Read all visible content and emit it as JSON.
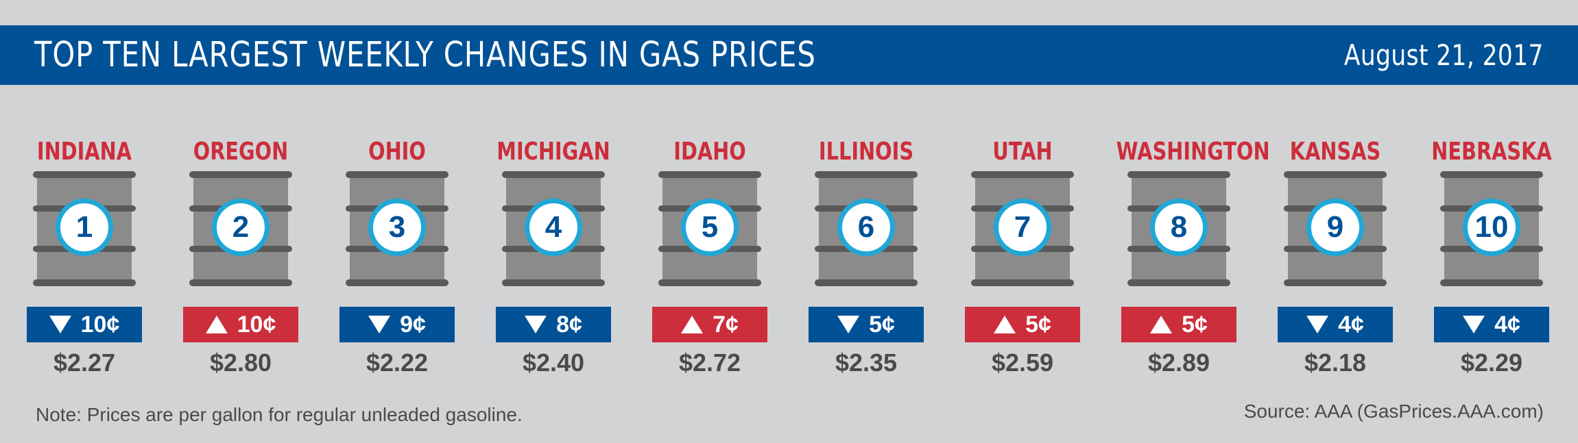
{
  "header": {
    "title": "TOP TEN LARGEST WEEKLY CHANGES IN GAS PRICES",
    "date": "August 21, 2017"
  },
  "colors": {
    "header_blue": "#005196",
    "state_red": "#cc2e3b",
    "decrease_blue": "#005196",
    "increase_red": "#cc2e3b",
    "badge_ring": "#21a7d6",
    "barrel_gray": "#8b8b8b",
    "background": "#d2d3d5"
  },
  "icons": {
    "barrel": "oil-barrel-icon",
    "decrease": "down-triangle-icon",
    "increase": "up-triangle-icon"
  },
  "states": [
    {
      "name": "INDIANA",
      "rank": "1",
      "direction": "down",
      "change": "10¢",
      "price": "$2.27"
    },
    {
      "name": "OREGON",
      "rank": "2",
      "direction": "up",
      "change": "10¢",
      "price": "$2.80"
    },
    {
      "name": "OHIO",
      "rank": "3",
      "direction": "down",
      "change": "9¢",
      "price": "$2.22"
    },
    {
      "name": "MICHIGAN",
      "rank": "4",
      "direction": "down",
      "change": "8¢",
      "price": "$2.40"
    },
    {
      "name": "IDAHO",
      "rank": "5",
      "direction": "up",
      "change": "7¢",
      "price": "$2.72"
    },
    {
      "name": "ILLINOIS",
      "rank": "6",
      "direction": "down",
      "change": "5¢",
      "price": "$2.35"
    },
    {
      "name": "UTAH",
      "rank": "7",
      "direction": "up",
      "change": "5¢",
      "price": "$2.59"
    },
    {
      "name": "WASHINGTON",
      "rank": "8",
      "direction": "up",
      "change": "5¢",
      "price": "$2.89"
    },
    {
      "name": "KANSAS",
      "rank": "9",
      "direction": "down",
      "change": "4¢",
      "price": "$2.18"
    },
    {
      "name": "NEBRASKA",
      "rank": "10",
      "direction": "down",
      "change": "4¢",
      "price": "$2.29"
    }
  ],
  "footer": {
    "note": "Note: Prices are per gallon for regular unleaded gasoline.",
    "source": "Source: AAA (GasPrices.AAA.com)"
  }
}
